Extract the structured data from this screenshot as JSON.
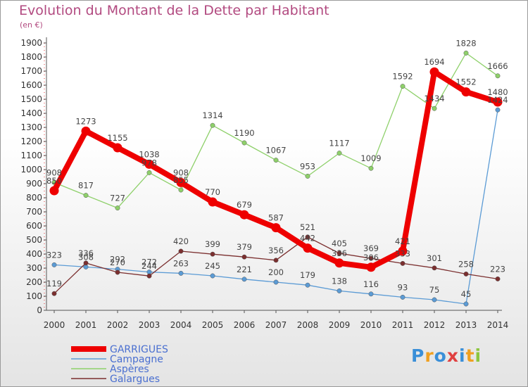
{
  "title": "Evolution du Montant de la Dette par Habitant",
  "unit": "(en €)",
  "logo": {
    "letters": [
      "P",
      "r",
      "o",
      "x",
      "i",
      "t",
      "i"
    ],
    "colors": [
      "#3a8fd8",
      "#f0a020",
      "#3a8fd8",
      "#e04040",
      "#3a8fd8",
      "#f0a020",
      "#8cc63f"
    ]
  },
  "chart_data": {
    "type": "line",
    "x": [
      "2000",
      "2001",
      "2002",
      "2003",
      "2004",
      "2005",
      "2006",
      "2007",
      "2008",
      "2009",
      "2010",
      "2011",
      "2012",
      "2013",
      "2014"
    ],
    "ylim": [
      0,
      1900
    ],
    "yticks": [
      0,
      100,
      200,
      300,
      400,
      500,
      600,
      700,
      800,
      900,
      1000,
      1100,
      1200,
      1300,
      1400,
      1500,
      1600,
      1700,
      1800,
      1900
    ],
    "grid": false,
    "legend_position": "bottom-left",
    "series": [
      {
        "name": "GARRIGUES",
        "color": "#ee0000",
        "highlight": true,
        "values": [
          850,
          1273,
          1155,
          1038,
          908,
          770,
          679,
          587,
          442,
          336,
          306,
          421,
          1694,
          1552,
          1480
        ],
        "labels": [
          "850",
          "1273",
          "1155",
          "1038",
          "908",
          "770",
          "679",
          "587",
          "442",
          "336",
          "306",
          "421",
          "1694",
          "1552",
          "1480"
        ]
      },
      {
        "name": "Campagne",
        "color": "#5b9bd5",
        "values": [
          323,
          308,
          292,
          272,
          263,
          245,
          221,
          200,
          179,
          138,
          116,
          93,
          75,
          45,
          1424
        ],
        "labels": [
          "323",
          "308",
          "292",
          "272",
          "263",
          "245",
          "221",
          "200",
          "179",
          "138",
          "116",
          "93",
          "75",
          "45",
          "1424"
        ]
      },
      {
        "name": "Aspères",
        "color": "#8ed06a",
        "values": [
          908,
          817,
          727,
          978,
          855,
          1314,
          1190,
          1067,
          953,
          1117,
          1009,
          1592,
          1434,
          1828,
          1666
        ],
        "labels": [
          "908",
          "817",
          "727",
          "978",
          "855",
          "1314",
          "1190",
          "1067",
          "953",
          "1117",
          "1009",
          "1592",
          "1434",
          "1828",
          "1666"
        ]
      },
      {
        "name": "Galargues",
        "color": "#7b2f2f",
        "values": [
          119,
          336,
          270,
          244,
          420,
          399,
          379,
          356,
          521,
          405,
          369,
          333,
          301,
          258,
          223
        ],
        "labels": [
          "119",
          "336",
          "270",
          "244",
          "420",
          "399",
          "379",
          "356",
          "521",
          "405",
          "369",
          "333",
          "301",
          "258",
          "223"
        ]
      }
    ]
  }
}
